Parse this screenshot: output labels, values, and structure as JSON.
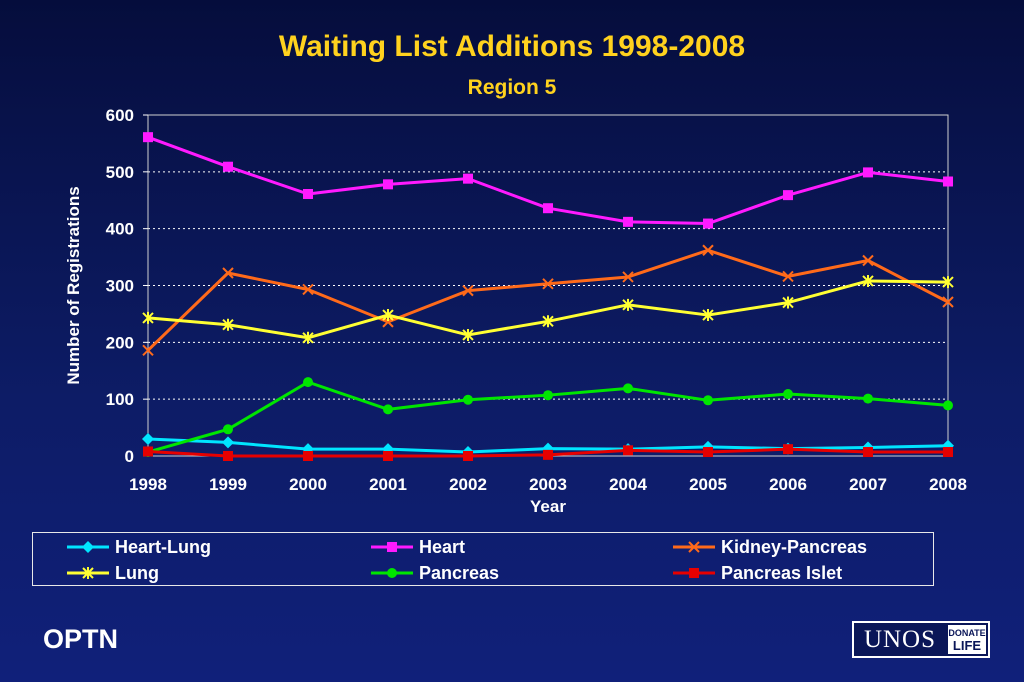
{
  "chart_data": {
    "type": "line",
    "title": "Waiting List Additions 1998-2008",
    "subtitle": "Region 5",
    "xlabel": "Year",
    "ylabel": "Number of Registrations",
    "categories": [
      "1998",
      "1999",
      "2000",
      "2001",
      "2002",
      "2003",
      "2004",
      "2005",
      "2006",
      "2007",
      "2008"
    ],
    "yticks": [
      "0",
      "100",
      "200",
      "300",
      "400",
      "500",
      "600"
    ],
    "ylim": [
      0,
      600
    ],
    "grid": true,
    "legend_position": "bottom",
    "series": [
      {
        "name": "Heart-Lung",
        "color": "#00e5ff",
        "marker": "diamond",
        "values": [
          30,
          24,
          12,
          12,
          7,
          13,
          12,
          16,
          13,
          15,
          18
        ]
      },
      {
        "name": "Heart",
        "color": "#ff1aff",
        "marker": "square",
        "values": [
          561,
          509,
          461,
          478,
          488,
          436,
          412,
          409,
          459,
          499,
          483
        ]
      },
      {
        "name": "Kidney-Pancreas",
        "color": "#ff6a1a",
        "marker": "x",
        "values": [
          186,
          322,
          293,
          236,
          291,
          303,
          315,
          362,
          316,
          344,
          271
        ]
      },
      {
        "name": "Lung",
        "color": "#ffff33",
        "marker": "star",
        "values": [
          243,
          231,
          208,
          248,
          213,
          237,
          266,
          248,
          270,
          308,
          306
        ]
      },
      {
        "name": "Pancreas",
        "color": "#00e600",
        "marker": "circle",
        "values": [
          7,
          47,
          130,
          82,
          99,
          107,
          119,
          98,
          109,
          101,
          89
        ]
      },
      {
        "name": "Pancreas Islet",
        "color": "#e60000",
        "marker": "square",
        "values": [
          8,
          0,
          0,
          0,
          0,
          2,
          10,
          7,
          12,
          7,
          7
        ]
      }
    ]
  },
  "footer": {
    "org": "OPTN",
    "logo_text": "UNOS",
    "logo_badge_top": "DONATE",
    "logo_badge_bottom": "LIFE"
  }
}
